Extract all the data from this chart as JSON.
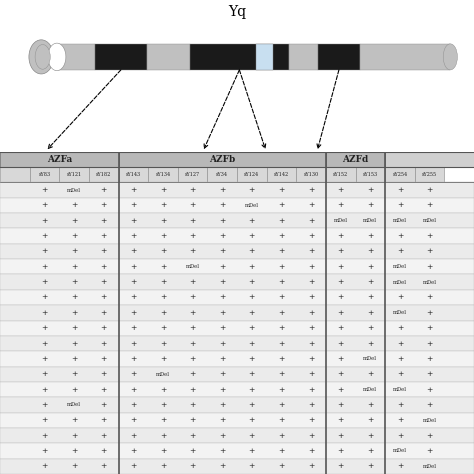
{
  "title": "Yq",
  "col_labels": [
    "",
    "sY83",
    "sY121",
    "sY182",
    "sY143",
    "sY134",
    "sY127",
    "sY34",
    "sY124",
    "sY142",
    "sY130",
    "sY152",
    "sY153",
    "sY254",
    "sY255",
    ""
  ],
  "rows": [
    [
      "+",
      "mDel",
      "+",
      "+",
      "+",
      "+",
      "+",
      "+",
      "+",
      "+",
      "+",
      "+",
      "+",
      "+"
    ],
    [
      "+",
      "+",
      "+",
      "+",
      "+",
      "+",
      "+",
      "mDel",
      "+",
      "+",
      "+",
      "+",
      "+",
      "+"
    ],
    [
      "+",
      "+",
      "+",
      "+",
      "+",
      "+",
      "+",
      "+",
      "+",
      "+",
      "mDel",
      "mDel",
      "mDel",
      "mDel"
    ],
    [
      "+",
      "+",
      "+",
      "+",
      "+",
      "+",
      "+",
      "+",
      "+",
      "+",
      "+",
      "+",
      "+",
      "+"
    ],
    [
      "+",
      "+",
      "+",
      "+",
      "+",
      "+",
      "+",
      "+",
      "+",
      "+",
      "+",
      "+",
      "+",
      "+"
    ],
    [
      "+",
      "+",
      "+",
      "+",
      "+",
      "mDel",
      "+",
      "+",
      "+",
      "+",
      "+",
      "+",
      "mDel",
      "+"
    ],
    [
      "+",
      "+",
      "+",
      "+",
      "+",
      "+",
      "+",
      "+",
      "+",
      "+",
      "+",
      "+",
      "mDel",
      "mDel"
    ],
    [
      "+",
      "+",
      "+",
      "+",
      "+",
      "+",
      "+",
      "+",
      "+",
      "+",
      "+",
      "+",
      "+",
      "+"
    ],
    [
      "+",
      "+",
      "+",
      "+",
      "+",
      "+",
      "+",
      "+",
      "+",
      "+",
      "+",
      "+",
      "mDel",
      "+"
    ],
    [
      "+",
      "+",
      "+",
      "+",
      "+",
      "+",
      "+",
      "+",
      "+",
      "+",
      "+",
      "+",
      "+",
      "+"
    ],
    [
      "+",
      "+",
      "+",
      "+",
      "+",
      "+",
      "+",
      "+",
      "+",
      "+",
      "+",
      "+",
      "+",
      "+"
    ],
    [
      "+",
      "+",
      "+",
      "+",
      "+",
      "+",
      "+",
      "+",
      "+",
      "+",
      "+",
      "mDel",
      "+",
      "+"
    ],
    [
      "+",
      "+",
      "+",
      "+",
      "mDel",
      "+",
      "+",
      "+",
      "+",
      "+",
      "+",
      "+",
      "+",
      "+"
    ],
    [
      "+",
      "+",
      "+",
      "+",
      "+",
      "+",
      "+",
      "+",
      "+",
      "+",
      "+",
      "mDel",
      "mDel",
      "+"
    ],
    [
      "+",
      "mDel",
      "+",
      "+",
      "+",
      "+",
      "+",
      "+",
      "+",
      "+",
      "+",
      "+",
      "+",
      "+"
    ],
    [
      "+",
      "+",
      "+",
      "+",
      "+",
      "+",
      "+",
      "+",
      "+",
      "+",
      "+",
      "+",
      "+",
      "mDel"
    ],
    [
      "+",
      "+",
      "+",
      "+",
      "+",
      "+",
      "+",
      "+",
      "+",
      "+",
      "+",
      "+",
      "+",
      "+"
    ],
    [
      "+",
      "+",
      "+",
      "+",
      "+",
      "+",
      "+",
      "+",
      "+",
      "+",
      "+",
      "+",
      "mDel",
      "+"
    ],
    [
      "+",
      "+",
      "+",
      "+",
      "+",
      "+",
      "+",
      "+",
      "+",
      "+",
      "+",
      "+",
      "+",
      "mDel"
    ]
  ],
  "region_spans": [
    [
      "AZFa",
      0,
      4
    ],
    [
      "AZFb",
      4,
      11
    ],
    [
      "AZFd",
      11,
      13
    ],
    [
      "",
      13,
      16
    ]
  ],
  "chrom_gray": "#c0c0c0",
  "chrom_black": "#1a1a1a",
  "chrom_light_blue": "#c8dff0",
  "chrom_outline": "#888888",
  "region_header_color": "#d0d0d0",
  "region_header_bold_color": "#b8b8b8",
  "col_header_color": "#d8d8d8",
  "row_even_color": "#ebebeb",
  "row_odd_color": "#f3f3f3",
  "cell_edge_color": "#bbbbbb",
  "divider_color": "#555555",
  "text_color": "#222222"
}
